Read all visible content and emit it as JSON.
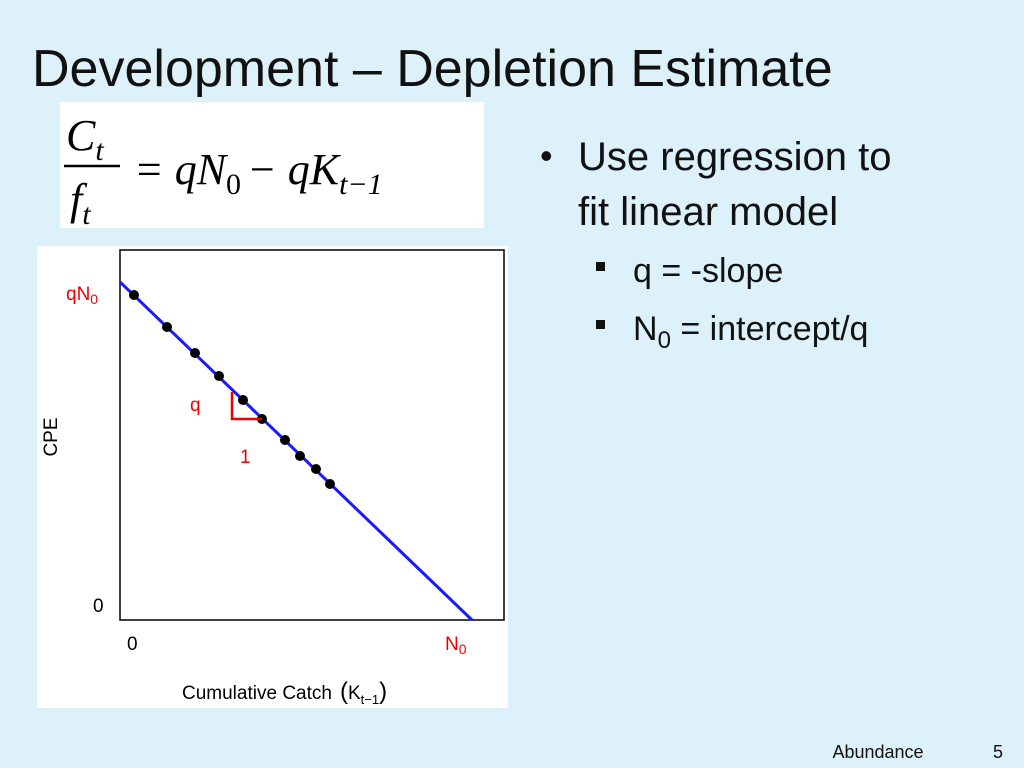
{
  "title": "Development – Depletion Estimate",
  "equation": {
    "num": "C",
    "num_sub": "t",
    "den": "f",
    "den_sub": "t",
    "rhs1": "= qN",
    "rhs1_sub": "0",
    "rhs2": "− qK",
    "rhs2_sub": "t−1"
  },
  "bullets": [
    {
      "lines": [
        "Use regression to",
        "fit linear model"
      ]
    },
    {
      "sub_bullets": [
        {
          "text": "q = -slope"
        },
        {
          "text": "N",
          "sub": "0",
          "rest": " = intercept/q"
        }
      ]
    }
  ],
  "figure": {
    "y_label": "CPE",
    "x_label": "Cumulative  Catch",
    "x_label_k": "K",
    "x_label_k_sub": "t−1",
    "intercept_label": "qN",
    "intercept_label_sub": "0",
    "slope_label": "q",
    "run_label": "1",
    "y_zero": "0",
    "x_zero": "0",
    "x_end_label": "N",
    "x_end_label_sub": "0"
  },
  "footer": {
    "text": "Abundance",
    "page": "5"
  }
}
